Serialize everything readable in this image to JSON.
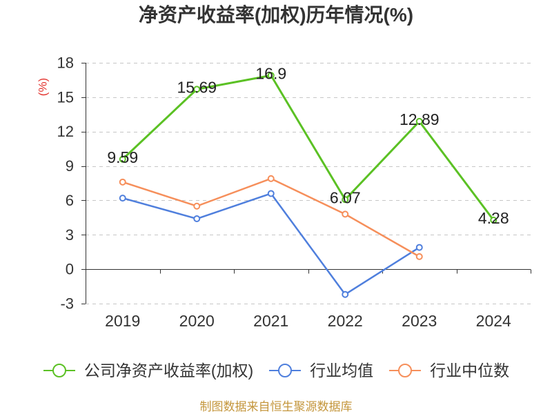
{
  "colors": {
    "unit_label": "#e3342f",
    "source_note": "#c4963c"
  },
  "source_note": "制图数据来自恒生聚源数据库",
  "chart_data": {
    "type": "line",
    "title": "净资产收益率(加权)历年情况(%)",
    "ylabel": "(%)",
    "categories": [
      "2019",
      "2020",
      "2021",
      "2022",
      "2023",
      "2024"
    ],
    "ylim": [
      -3,
      18
    ],
    "yticks": [
      -3,
      0,
      3,
      6,
      9,
      12,
      15,
      18
    ],
    "grid": true,
    "legend_position": "bottom",
    "series": [
      {
        "name": "公司净资产收益率(加权)",
        "color": "#5bc124",
        "show_labels": true,
        "values": [
          9.59,
          15.69,
          16.9,
          6.07,
          12.89,
          4.28
        ]
      },
      {
        "name": "行业均值",
        "color": "#4f7fdd",
        "show_labels": false,
        "values": [
          6.2,
          4.4,
          6.6,
          -2.2,
          1.9,
          null
        ]
      },
      {
        "name": "行业中位数",
        "color": "#f68f5b",
        "show_labels": false,
        "values": [
          7.6,
          5.5,
          7.9,
          4.8,
          1.1,
          null
        ]
      }
    ]
  }
}
